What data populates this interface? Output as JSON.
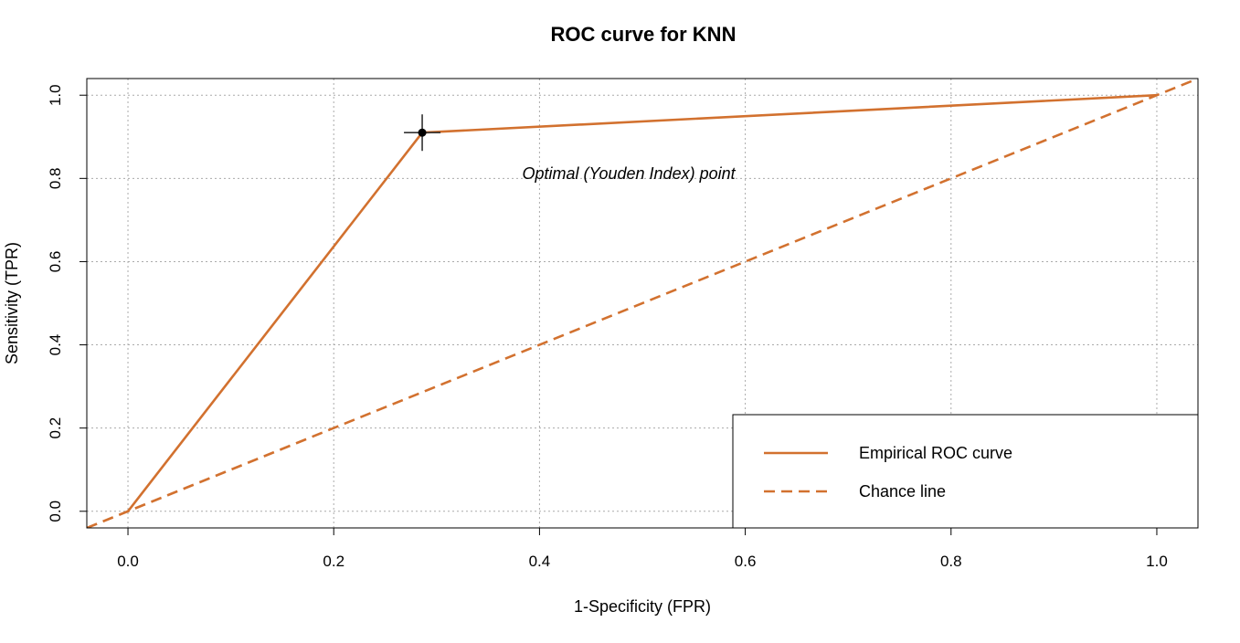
{
  "chart_data": {
    "type": "line",
    "title": "ROC curve for KNN",
    "xlabel": "1-Specificity (FPR)",
    "ylabel": "Sensitivity (TPR)",
    "xlim": [
      -0.04,
      1.04
    ],
    "ylim": [
      -0.04,
      1.04
    ],
    "grid": true,
    "xticks": [
      0.0,
      0.2,
      0.4,
      0.6,
      0.8,
      1.0
    ],
    "yticks": [
      0.0,
      0.2,
      0.4,
      0.6,
      0.8,
      1.0
    ],
    "xtick_labels": [
      "0.0",
      "0.2",
      "0.4",
      "0.6",
      "0.8",
      "1.0"
    ],
    "ytick_labels": [
      "0.0",
      "0.2",
      "0.4",
      "0.6",
      "0.8",
      "1.0"
    ],
    "series": [
      {
        "name": "Empirical ROC curve",
        "style": "solid",
        "color": "#D2712F",
        "x": [
          0.0,
          0.286,
          1.0
        ],
        "y": [
          0.0,
          0.91,
          1.0
        ]
      },
      {
        "name": "Chance line",
        "style": "dashed",
        "color": "#D2712F",
        "x": [
          -0.04,
          1.04
        ],
        "y": [
          -0.04,
          1.04
        ]
      }
    ],
    "optimal_point": {
      "x": 0.286,
      "y": 0.91,
      "label": "Optimal (Youden Index) point",
      "color": "#000000"
    },
    "legend": {
      "position": "bottom-right",
      "entries": [
        "Empirical ROC curve",
        "Chance line"
      ]
    }
  }
}
